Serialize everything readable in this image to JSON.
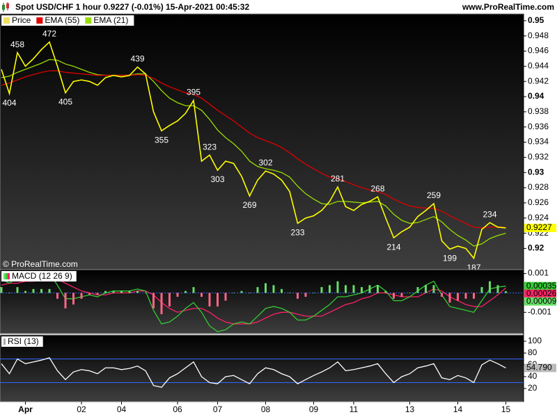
{
  "chart_data": [
    {
      "type": "line",
      "title": "Spot USD/CHF 1 hour 0.9227 (-0.01%) 15-Apr-2021 00:45:32",
      "source": "www.ProRealTime.com",
      "copyright": "© ProRealTime.com",
      "categories": [
        null,
        null,
        null,
        "Apr",
        null,
        null,
        null,
        null,
        null,
        null,
        "02",
        null,
        null,
        null,
        null,
        "04",
        null,
        null,
        null,
        null,
        null,
        null,
        "06",
        null,
        null,
        null,
        null,
        "07",
        null,
        null,
        null,
        null,
        null,
        "08",
        null,
        null,
        null,
        null,
        null,
        "09",
        null,
        null,
        null,
        null,
        "11",
        null,
        null,
        null,
        null,
        null,
        null,
        "13",
        null,
        null,
        null,
        null,
        null,
        "14",
        null,
        null,
        null,
        null,
        null,
        "15"
      ],
      "series": [
        {
          "name": "Price",
          "color": "#ffff00",
          "last_box": true,
          "values": [
            0.9436,
            0.9404,
            0.9458,
            0.944,
            0.945,
            0.9462,
            0.9472,
            0.944,
            0.9405,
            0.942,
            0.9422,
            0.942,
            0.9415,
            0.9425,
            0.9428,
            0.9426,
            0.9428,
            0.9439,
            0.943,
            0.938,
            0.9355,
            0.9362,
            0.9368,
            0.9378,
            0.9395,
            0.9315,
            0.9323,
            0.9303,
            0.9315,
            0.9312,
            0.9295,
            0.9269,
            0.929,
            0.9302,
            0.9298,
            0.929,
            0.9275,
            0.9233,
            0.924,
            0.9243,
            0.925,
            0.9262,
            0.9281,
            0.9255,
            0.925,
            0.9258,
            0.9262,
            0.9268,
            0.924,
            0.9214,
            0.9222,
            0.9228,
            0.9242,
            0.925,
            0.9259,
            0.921,
            0.9199,
            0.9203,
            0.92,
            0.9187,
            0.9225,
            0.9234,
            0.9228,
            0.9227
          ],
          "value_labels": [
            null,
            "404",
            "458",
            null,
            null,
            null,
            "472",
            null,
            "405",
            null,
            null,
            null,
            null,
            null,
            null,
            null,
            null,
            "439",
            null,
            null,
            "355",
            null,
            null,
            null,
            "395",
            null,
            "323",
            "303",
            null,
            null,
            null,
            "269",
            null,
            "302",
            null,
            null,
            null,
            "233",
            null,
            null,
            null,
            null,
            "281",
            null,
            null,
            null,
            null,
            "268",
            null,
            "214",
            null,
            null,
            null,
            null,
            "259",
            null,
            "199",
            null,
            null,
            "187",
            null,
            "234",
            null,
            null
          ]
        },
        {
          "name": "EMA (55)",
          "color": "#e00000",
          "values": [
            0.9415,
            0.9418,
            0.9422,
            0.9426,
            0.9429,
            0.9432,
            0.9434,
            0.9434,
            0.9432,
            0.9431,
            0.943,
            0.9429,
            0.9428,
            0.9428,
            0.9428,
            0.9428,
            0.9428,
            0.9429,
            0.9428,
            0.9424,
            0.9418,
            0.9413,
            0.9409,
            0.9405,
            0.9403,
            0.9398,
            0.939,
            0.9382,
            0.9375,
            0.9368,
            0.936,
            0.9352,
            0.9346,
            0.9342,
            0.9338,
            0.9333,
            0.9326,
            0.9318,
            0.9311,
            0.9305,
            0.9299,
            0.9294,
            0.9292,
            0.9288,
            0.9284,
            0.928,
            0.9277,
            0.9275,
            0.9271,
            0.9265,
            0.926,
            0.9256,
            0.9254,
            0.9253,
            0.9253,
            0.9249,
            0.9243,
            0.9238,
            0.9233,
            0.9228,
            0.9227,
            0.9228,
            0.9228,
            0.9228
          ]
        },
        {
          "name": "EMA (21)",
          "color": "#99dd00",
          "values": [
            0.9425,
            0.9427,
            0.9432,
            0.9436,
            0.944,
            0.9444,
            0.9449,
            0.9448,
            0.9443,
            0.944,
            0.9436,
            0.9432,
            0.9429,
            0.9428,
            0.9428,
            0.9428,
            0.9428,
            0.943,
            0.943,
            0.942,
            0.9408,
            0.9398,
            0.9392,
            0.9388,
            0.9388,
            0.9382,
            0.937,
            0.9356,
            0.9346,
            0.9338,
            0.9328,
            0.9315,
            0.9308,
            0.9305,
            0.9303,
            0.93,
            0.9294,
            0.9282,
            0.9272,
            0.9265,
            0.9259,
            0.9258,
            0.9262,
            0.9262,
            0.9261,
            0.926,
            0.9261,
            0.9262,
            0.9256,
            0.9245,
            0.9237,
            0.9233,
            0.9234,
            0.9238,
            0.9242,
            0.9235,
            0.9225,
            0.9217,
            0.9211,
            0.9203,
            0.9206,
            0.9213,
            0.9217,
            0.922
          ]
        }
      ],
      "ylim": [
        0.9172,
        0.9509
      ],
      "yticks": [
        0.95,
        0.948,
        0.946,
        0.944,
        0.942,
        0.94,
        0.938,
        0.936,
        0.934,
        0.932,
        0.93,
        0.928,
        0.926,
        0.924,
        0.922,
        0.92
      ],
      "grid": false
    },
    {
      "type": "line",
      "title": "MACD (12 26 9)",
      "series": [
        {
          "type": "bar",
          "color": "#66dd66",
          "negative_color": "#ff6688",
          "last_box": true,
          "values": [
            0.0003,
            0,
            0.0003,
            0.0001,
            0.0002,
            0.0002,
            0.0002,
            -0.0003,
            -0.0008,
            -0.0006,
            -0.0003,
            -0.0001,
            -0.0001,
            0.0001,
            0.0001,
            0.0001,
            0.0001,
            0.0001,
            0,
            -0.0008,
            -0.0011,
            -0.0007,
            -0.0002,
            0.0001,
            0.0003,
            -0.0002,
            -0.0007,
            -0.0007,
            -0.0004,
            0,
            0.0001,
            0,
            0.0003,
            0.0005,
            0.0004,
            0.0002,
            0,
            -0.0003,
            -0.0002,
            0,
            0.0003,
            0.0004,
            0.0006,
            0.0004,
            0.0004,
            0.0003,
            0.0004,
            0.0004,
            0.0001,
            -0.0003,
            -0.0002,
            0,
            0.0003,
            0.0004,
            0.0004,
            -0.0002,
            -0.0005,
            -0.0004,
            -0.0003,
            -0.0003,
            0.0003,
            0.0006,
            0.0004,
            9e-05
          ]
        },
        {
          "color": "#33cc33",
          "last_box": true,
          "values": [
            0.0007,
            0.0005,
            0.0008,
            0.0007,
            0.0008,
            0.0009,
            0.001,
            0.0004,
            -0.0003,
            -0.0003,
            -0.0002,
            -0.0001,
            -0.0002,
            0,
            0.0001,
            0.0001,
            0.0001,
            0.0002,
            0.0001,
            -0.0009,
            -0.0016,
            -0.0015,
            -0.0012,
            -0.0008,
            -0.0005,
            -0.001,
            -0.0017,
            -0.002,
            -0.0019,
            -0.0016,
            -0.0015,
            -0.0016,
            -0.0012,
            -0.0008,
            -0.0007,
            -0.0008,
            -0.001,
            -0.0014,
            -0.0014,
            -0.0012,
            -0.0009,
            -0.0006,
            -0.0002,
            -0.0002,
            -0.0001,
            0,
            0.0002,
            0.0004,
            0.0001,
            -0.0004,
            -0.0004,
            -0.0002,
            0.0001,
            0.0004,
            0.0006,
            -0.0001,
            -0.0007,
            -0.0008,
            -0.0009,
            -0.001,
            -0.0004,
            0.0002,
            0.0003,
            0.00035
          ]
        },
        {
          "color": "#ff2266",
          "last_box": true,
          "values": [
            0.0004,
            0.0005,
            0.0005,
            0.0006,
            0.0006,
            0.0007,
            0.0008,
            0.0007,
            0.0005,
            0.0003,
            0.0001,
            0,
            -0.0001,
            -0.0001,
            0,
            0,
            0,
            0.0001,
            0.0001,
            -0.0001,
            -0.0005,
            -0.0008,
            -0.001,
            -0.0009,
            -0.0008,
            -0.0008,
            -0.001,
            -0.0013,
            -0.0015,
            -0.0016,
            -0.0016,
            -0.0016,
            -0.0015,
            -0.0013,
            -0.0011,
            -0.001,
            -0.001,
            -0.0011,
            -0.0012,
            -0.0012,
            -0.0012,
            -0.001,
            -0.0008,
            -0.0006,
            -0.0005,
            -0.0003,
            -0.0002,
            0,
            0,
            -0.0001,
            -0.0002,
            -0.0002,
            -0.0002,
            0,
            0.0002,
            0.0001,
            -0.0002,
            -0.0004,
            -0.0006,
            -0.0007,
            -0.0007,
            -0.0004,
            -0.0001,
            0.00026
          ]
        }
      ],
      "ylim": [
        -0.0021,
        0.0012
      ],
      "yticks": [
        0.001,
        -0.001
      ],
      "levels": [
        0
      ]
    },
    {
      "type": "line",
      "title": "RSI (13)",
      "series": [
        {
          "color": "#ffffff",
          "last_box": true,
          "last_value_label": "54.790",
          "values": [
            62,
            45,
            70,
            62,
            65,
            68,
            72,
            50,
            35,
            48,
            52,
            50,
            45,
            55,
            55,
            52,
            54,
            58,
            50,
            25,
            22,
            38,
            45,
            55,
            65,
            40,
            30,
            28,
            40,
            42,
            35,
            28,
            45,
            55,
            52,
            45,
            40,
            28,
            35,
            42,
            48,
            55,
            65,
            50,
            52,
            55,
            58,
            62,
            45,
            30,
            40,
            45,
            55,
            58,
            62,
            38,
            35,
            42,
            38,
            30,
            60,
            68,
            62,
            54.79
          ]
        }
      ],
      "ylim": [
        -2.4,
        110.6
      ],
      "yticks": [
        100,
        80,
        60,
        40,
        20
      ],
      "levels": [
        70,
        30
      ]
    }
  ]
}
